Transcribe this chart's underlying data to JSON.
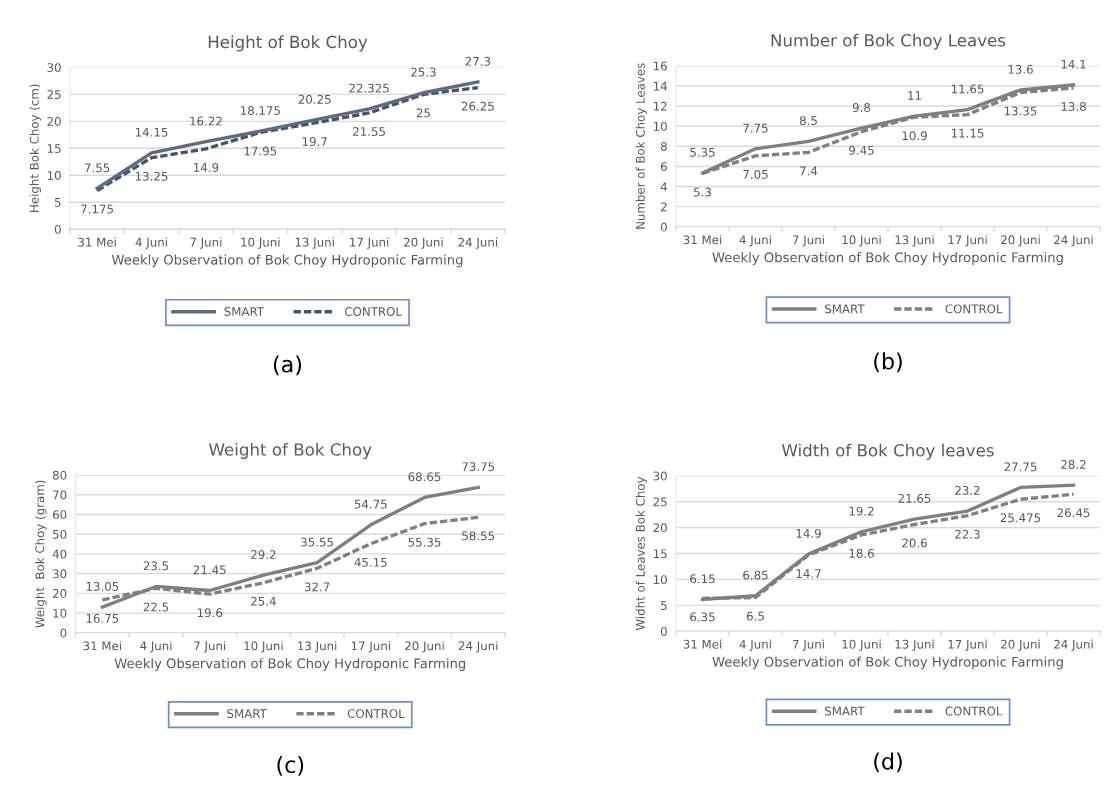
{
  "chart_data": [
    {
      "type": "line",
      "title": "Height of Bok Choy",
      "xlabel": "Weekly Observation of Bok Choy Hydroponic Farming",
      "ylabel": "Height Bok Choy (cm)",
      "categories": [
        "31 Mei",
        "4 Juni",
        "7 Juni",
        "10 Juni",
        "13 Juni",
        "17 Juni",
        "20 Juni",
        "24 Juni"
      ],
      "ylim": [
        0,
        30
      ],
      "yticks": [
        0,
        5,
        10,
        15,
        20,
        25,
        30
      ],
      "grid": "y",
      "legend": "bottom",
      "data_labels": true,
      "annotations": [
        "(a)"
      ],
      "series": [
        {
          "name": "SMART",
          "color": "#5f6b80",
          "line_style": "solid",
          "values": [
            7.55,
            14.15,
            16.22,
            18.175,
            20.25,
            22.325,
            25.3,
            27.3
          ]
        },
        {
          "name": "CONTROL",
          "color": "#44546a",
          "line_style": "dashed",
          "values": [
            7.175,
            13.25,
            14.9,
            17.95,
            19.7,
            21.55,
            25,
            26.25
          ]
        }
      ]
    },
    {
      "type": "line",
      "title": "Number of Bok Choy Leaves",
      "xlabel": "Weekly Observation of Bok Choy Hydroponic Farming",
      "ylabel": "Number of Bok Choy Leaves",
      "categories": [
        "31 Mei",
        "4 Juni",
        "7 Juni",
        "10 Juni",
        "13 Juni",
        "17 Juni",
        "20 Juni",
        "24 Juni"
      ],
      "ylim": [
        0,
        16
      ],
      "yticks": [
        0,
        2,
        4,
        6,
        8,
        10,
        12,
        14,
        16
      ],
      "grid": "y",
      "legend": "bottom",
      "data_labels": true,
      "annotations": [
        "(b)"
      ],
      "series": [
        {
          "name": "SMART",
          "color": "#7f7f7f",
          "line_style": "solid",
          "values": [
            5.35,
            7.75,
            8.5,
            9.8,
            11,
            11.65,
            13.6,
            14.1
          ]
        },
        {
          "name": "CONTROL",
          "color": "#808080",
          "line_style": "dashed",
          "values": [
            5.3,
            7.05,
            7.4,
            9.45,
            10.9,
            11.15,
            13.35,
            13.8
          ]
        }
      ]
    },
    {
      "type": "line",
      "title": "Weight of Bok Choy",
      "xlabel": "Weekly Observation of Bok Choy Hydroponic Farming",
      "ylabel": "Weight  Bok Choy (gram)",
      "categories": [
        "31 Mei",
        "4 Juni",
        "7 Juni",
        "10 Juni",
        "13 Juni",
        "17 Juni",
        "20 Juni",
        "24 Juni"
      ],
      "ylim": [
        0,
        80
      ],
      "yticks": [
        0,
        10,
        20,
        30,
        40,
        50,
        60,
        70,
        80
      ],
      "grid": "y",
      "legend": "bottom",
      "data_labels": true,
      "annotations": [
        "(c)"
      ],
      "series": [
        {
          "name": "SMART",
          "color": "#7f7f7f",
          "line_style": "solid",
          "values": [
            13.05,
            23.5,
            21.45,
            29.2,
            35.55,
            54.75,
            68.65,
            73.75
          ]
        },
        {
          "name": "CONTROL",
          "color": "#808080",
          "line_style": "dashed",
          "values": [
            16.75,
            22.5,
            19.6,
            25.4,
            32.7,
            45.15,
            55.35,
            58.55
          ]
        }
      ]
    },
    {
      "type": "line",
      "title": "Width of Bok Choy leaves",
      "xlabel": "Weekly Observation of Bok Choy Hydroponic Farming",
      "ylabel": "Widht of Leaves Bok Choy",
      "categories": [
        "31 Mei",
        "4 Juni",
        "7 Juni",
        "10 Juni",
        "13 Juni",
        "17 Juni",
        "20 Juni",
        "24 Juni"
      ],
      "ylim": [
        0,
        30
      ],
      "yticks": [
        0,
        5,
        10,
        15,
        20,
        25,
        30
      ],
      "grid": "y",
      "legend": "bottom",
      "data_labels": true,
      "annotations": [
        "(d)"
      ],
      "series": [
        {
          "name": "SMART",
          "color": "#7f7f7f",
          "line_style": "solid",
          "values": [
            6.15,
            6.85,
            14.9,
            19.2,
            21.65,
            23.2,
            27.75,
            28.2
          ]
        },
        {
          "name": "CONTROL",
          "color": "#808080",
          "line_style": "dashed",
          "values": [
            6.35,
            6.5,
            14.7,
            18.6,
            20.6,
            22.3,
            25.475,
            26.45
          ]
        }
      ]
    }
  ]
}
